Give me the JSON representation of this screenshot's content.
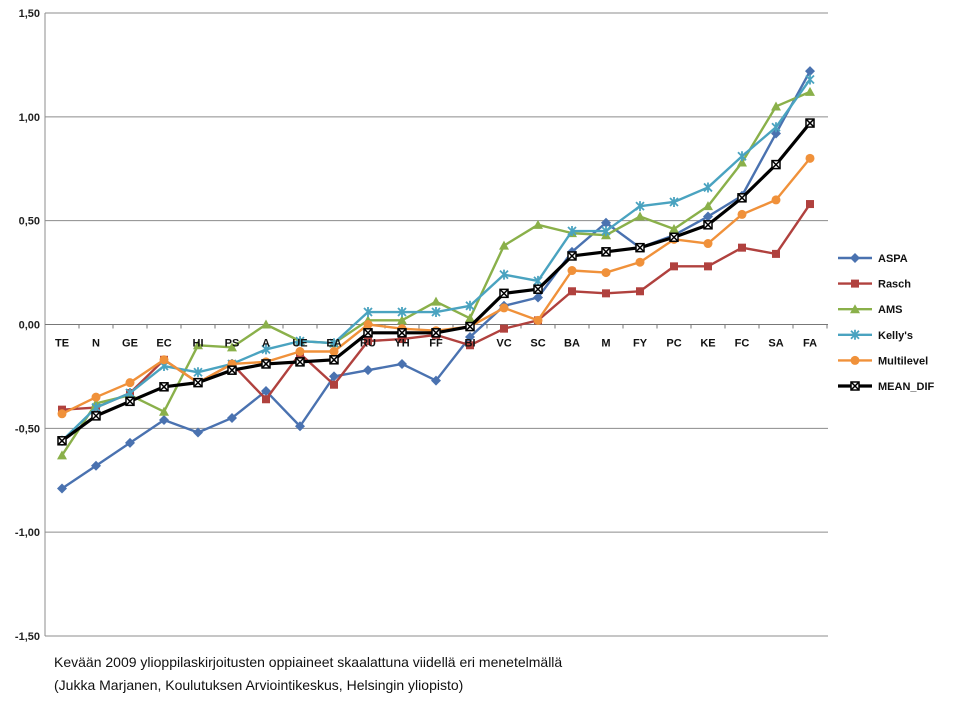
{
  "chart_data": {
    "type": "line",
    "categories": [
      "TE",
      "N",
      "GE",
      "EC",
      "HI",
      "PS",
      "A",
      "UE",
      "EA",
      "RU",
      "YH",
      "FF",
      "BI",
      "VC",
      "SC",
      "BA",
      "M",
      "FY",
      "PC",
      "KE",
      "FC",
      "SA",
      "FA"
    ],
    "ylim": [
      -1.5,
      1.5
    ],
    "yticks": [
      "1,50",
      "1,00",
      "0,50",
      "0,00",
      "-0,50",
      "-1,00",
      "-1,50"
    ],
    "ytick_values": [
      1.5,
      1.0,
      0.5,
      0.0,
      -0.5,
      -1.0,
      -1.5
    ],
    "grid": true,
    "legend_position": "right",
    "series": [
      {
        "name": "ASPA",
        "color": "#4a72b0",
        "marker": "diamond",
        "values": [
          -0.79,
          -0.68,
          -0.57,
          -0.46,
          -0.52,
          -0.45,
          -0.32,
          -0.49,
          -0.25,
          -0.22,
          -0.19,
          -0.27,
          -0.06,
          0.09,
          0.13,
          0.35,
          0.49,
          0.37,
          0.43,
          0.52,
          0.62,
          0.92,
          1.22
        ]
      },
      {
        "name": "Rasch",
        "color": "#b0413e",
        "marker": "square",
        "values": [
          -0.41,
          -0.4,
          -0.33,
          -0.17,
          -0.28,
          -0.19,
          -0.36,
          -0.14,
          -0.29,
          -0.08,
          -0.07,
          -0.05,
          -0.1,
          -0.02,
          0.02,
          0.16,
          0.15,
          0.16,
          0.28,
          0.28,
          0.37,
          0.34,
          0.58
        ]
      },
      {
        "name": "AMS",
        "color": "#8ab04a",
        "marker": "triangle",
        "values": [
          -0.63,
          -0.38,
          -0.34,
          -0.42,
          -0.1,
          -0.11,
          0.0,
          -0.08,
          -0.09,
          0.02,
          0.02,
          0.11,
          0.03,
          0.38,
          0.48,
          0.44,
          0.43,
          0.52,
          0.46,
          0.57,
          0.78,
          1.05,
          1.12
        ]
      },
      {
        "name": "Kelly's",
        "color": "#4aa3c0",
        "marker": "star",
        "values": [
          -0.56,
          -0.4,
          -0.33,
          -0.2,
          -0.23,
          -0.19,
          -0.12,
          -0.08,
          -0.09,
          0.06,
          0.06,
          0.06,
          0.09,
          0.24,
          0.21,
          0.45,
          0.45,
          0.57,
          0.59,
          0.66,
          0.81,
          0.95,
          1.18
        ]
      },
      {
        "name": "Multilevel",
        "color": "#f0913a",
        "marker": "circle",
        "values": [
          -0.43,
          -0.35,
          -0.28,
          -0.17,
          -0.28,
          -0.19,
          -0.18,
          -0.13,
          -0.13,
          0.0,
          -0.02,
          -0.03,
          -0.01,
          0.08,
          0.02,
          0.26,
          0.25,
          0.3,
          0.41,
          0.39,
          0.53,
          0.6,
          0.8
        ]
      },
      {
        "name": "MEAN_DIF",
        "color": "#000000",
        "marker": "xbox",
        "values": [
          -0.56,
          -0.44,
          -0.37,
          -0.3,
          -0.28,
          -0.22,
          -0.19,
          -0.18,
          -0.17,
          -0.04,
          -0.04,
          -0.04,
          -0.01,
          0.15,
          0.17,
          0.33,
          0.35,
          0.37,
          0.42,
          0.48,
          0.61,
          0.77,
          0.97
        ]
      }
    ]
  },
  "caption": {
    "line1": "Kevään 2009 ylioppilaskirjoitusten oppiaineet skaalattuna viidellä eri menetelmällä",
    "line2": "(Jukka Marjanen, Koulutuksen Arviointikeskus, Helsingin yliopisto)"
  }
}
